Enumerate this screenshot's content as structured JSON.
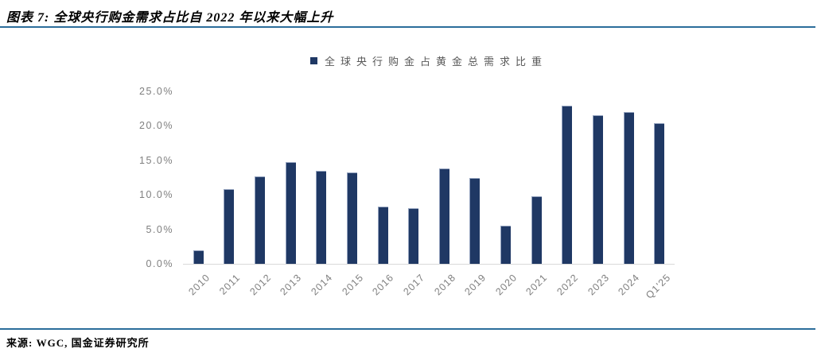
{
  "header": {
    "title": "图表 7: 全球央行购金需求占比自 2022 年以来大幅上升"
  },
  "legend": {
    "label": "全球央行购金占黄金总需求比重"
  },
  "chart_data": {
    "type": "bar",
    "title": "全球央行购金占黄金总需求比重",
    "categories": [
      "2010",
      "2011",
      "2012",
      "2013",
      "2014",
      "2015",
      "2016",
      "2017",
      "2018",
      "2019",
      "2020",
      "2021",
      "2022",
      "2023",
      "2024",
      "Q1'25"
    ],
    "values": [
      2.0,
      10.8,
      12.7,
      14.7,
      13.5,
      13.2,
      8.3,
      8.1,
      13.8,
      12.4,
      5.5,
      9.8,
      22.9,
      21.5,
      22.0,
      20.4
    ],
    "unit": "%",
    "xlabel": "",
    "ylabel": "",
    "ylim": [
      0,
      25
    ],
    "yticks": [
      0,
      5,
      10,
      15,
      20,
      25
    ],
    "ytick_labels": [
      "0.0%",
      "5.0%",
      "10.0%",
      "15.0%",
      "20.0%",
      "25.0%"
    ],
    "grid": false,
    "legend_position": "top-center",
    "bar_color": "#1F3864"
  },
  "footer": {
    "source": "来源: WGC, 国金证券研究所"
  },
  "colors": {
    "bar": "#1F3864",
    "bar_edge": "#93A2BE",
    "divider": "#2C6D9B",
    "axis_line": "#D9D9D9",
    "tick_text": "#7F7F7F",
    "legend_text": "#595959"
  }
}
